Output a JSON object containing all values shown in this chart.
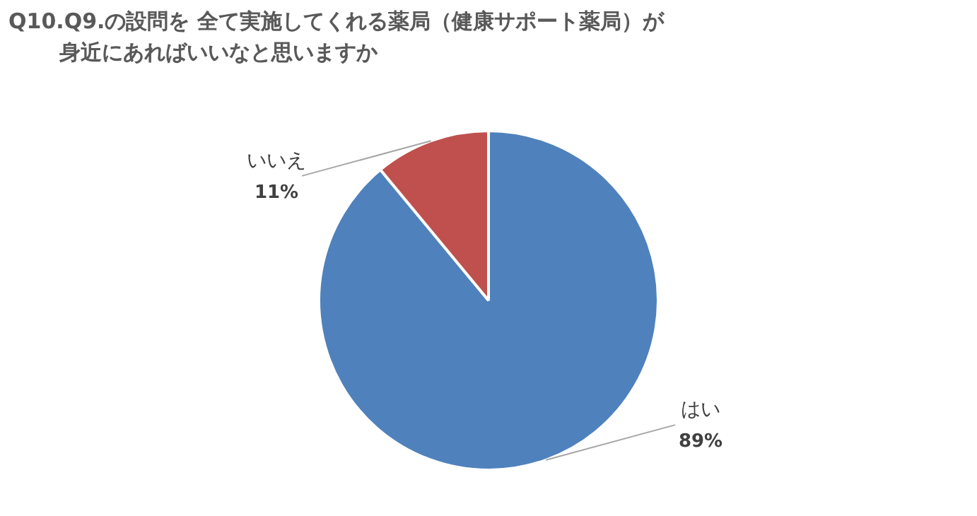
{
  "chart_data": {
    "type": "pie",
    "title": "Q10.Q9.の設問を 全て実施してくれる薬局（健康サポート薬局）が身近にあればいいなと思いますか",
    "categories": [
      "はい",
      "いいえ"
    ],
    "values": [
      89,
      11
    ],
    "value_labels": [
      "89%",
      "11%"
    ],
    "colors": [
      "#4f81bd",
      "#c0504d"
    ],
    "legend": false
  }
}
